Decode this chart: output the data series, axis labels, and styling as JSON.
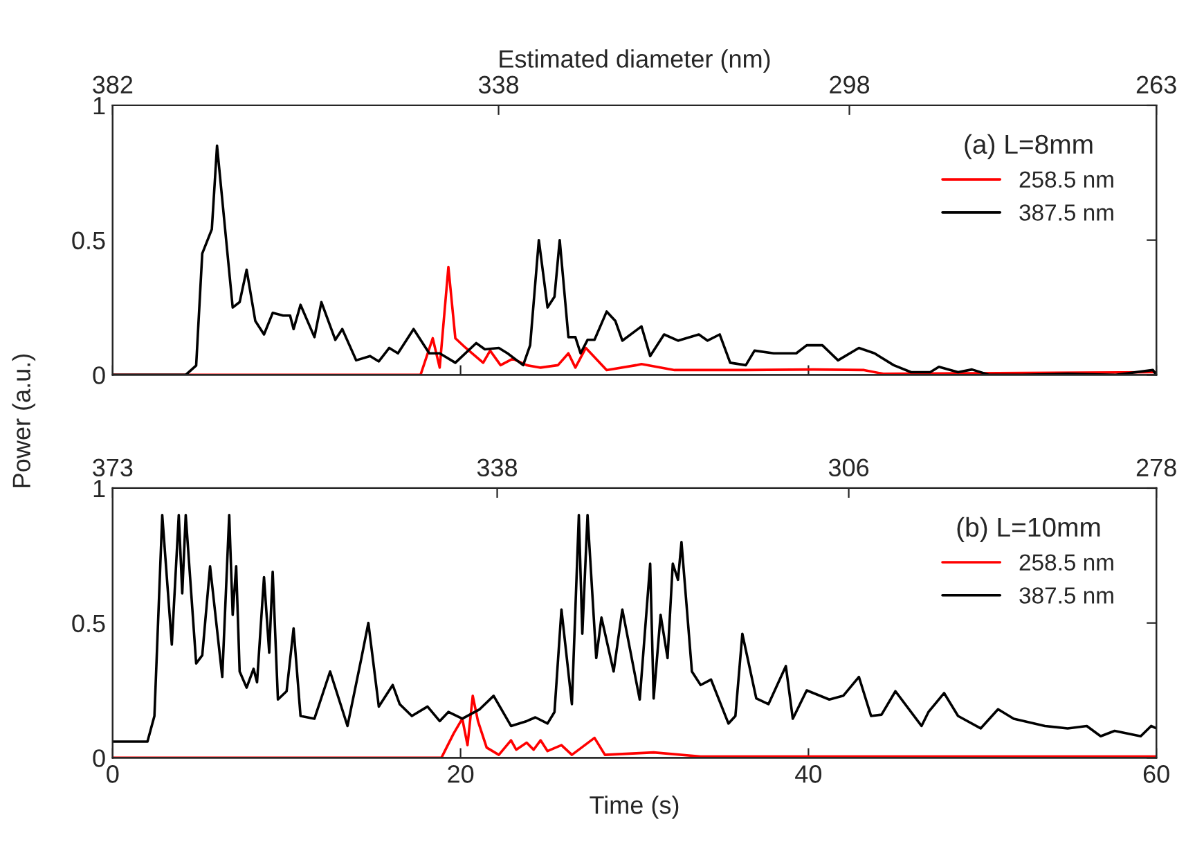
{
  "chart_data": [
    {
      "type": "line",
      "x2label": "Estimated diameter (nm)",
      "ylabel": "Power (a.u.)",
      "legend_title": "(a) L=8mm",
      "legend": "top right",
      "grid": false,
      "tick_labels": "y",
      "xlim": [
        0,
        60
      ],
      "xticks": [
        0,
        20,
        40,
        60
      ],
      "ylim": [
        0,
        1
      ],
      "yticks": [
        0,
        0.5,
        1
      ],
      "x2lim": [
        382,
        263
      ],
      "x2ticks": [
        382,
        338,
        298,
        263
      ],
      "series": [
        {
          "name": "258.5 nm",
          "color": "#ff0000",
          "x": [
            0,
            17.7,
            18.4,
            18.8,
            19.3,
            19.7,
            20.3,
            21.3,
            21.7,
            22.3,
            23.0,
            23.8,
            24.6,
            25.6,
            26.2,
            26.6,
            27.2,
            28.4,
            30.1,
            30.4,
            32.3,
            36.4,
            40.3,
            43.2,
            44.3,
            60
          ],
          "values": [
            0,
            0,
            0.136,
            0.027,
            0.4,
            0.136,
            0.1,
            0.045,
            0.09,
            0.036,
            0.06,
            0.036,
            0.027,
            0.036,
            0.08,
            0.027,
            0.1,
            0.018,
            0.036,
            0.04,
            0.018,
            0.018,
            0.02,
            0.018,
            0.004,
            0.01
          ]
        },
        {
          "name": "387.5 nm",
          "color": "#000000",
          "x": [
            0,
            4.2,
            4.8,
            5.15,
            5.7,
            6.0,
            6.9,
            7.3,
            7.7,
            8.2,
            8.7,
            9.2,
            9.8,
            10.2,
            10.4,
            10.8,
            11.6,
            12.0,
            12.8,
            13.2,
            14.0,
            14.8,
            15.3,
            15.9,
            16.4,
            17.3,
            18.2,
            18.8,
            19.7,
            20.9,
            21.4,
            22.2,
            22.7,
            23.6,
            24.0,
            24.5,
            25.0,
            25.4,
            25.7,
            26.2,
            26.6,
            26.9,
            27.3,
            27.7,
            28.4,
            28.9,
            29.3,
            30.4,
            30.9,
            31.7,
            32.5,
            33.7,
            34.2,
            34.9,
            35.5,
            36.4,
            36.9,
            38.0,
            39.3,
            39.9,
            40.8,
            41.7,
            42.9,
            43.8,
            44.9,
            45.9,
            47.0,
            47.5,
            48.6,
            49.4,
            50.4,
            52.3,
            54.9,
            57.6,
            59.8,
            60
          ],
          "values": [
            0,
            0,
            0.035,
            0.45,
            0.54,
            0.85,
            0.25,
            0.27,
            0.39,
            0.2,
            0.15,
            0.23,
            0.22,
            0.22,
            0.17,
            0.26,
            0.14,
            0.27,
            0.13,
            0.17,
            0.054,
            0.07,
            0.05,
            0.1,
            0.08,
            0.17,
            0.08,
            0.08,
            0.045,
            0.118,
            0.095,
            0.1,
            0.08,
            0.036,
            0.11,
            0.5,
            0.25,
            0.29,
            0.5,
            0.14,
            0.14,
            0.08,
            0.13,
            0.13,
            0.235,
            0.2,
            0.127,
            0.18,
            0.07,
            0.15,
            0.127,
            0.15,
            0.127,
            0.15,
            0.045,
            0.036,
            0.09,
            0.08,
            0.08,
            0.11,
            0.11,
            0.054,
            0.1,
            0.08,
            0.036,
            0.01,
            0.01,
            0.03,
            0.01,
            0.02,
            0,
            0,
            0.004,
            0,
            0.018,
            0
          ]
        }
      ]
    },
    {
      "type": "line",
      "xlabel": "Time (s)",
      "legend_title": "(b) L=10mm",
      "legend": "top right",
      "grid": false,
      "xlim": [
        0,
        60
      ],
      "xticks": [
        0,
        20,
        40,
        60
      ],
      "ylim": [
        0,
        1
      ],
      "yticks": [
        0,
        0.5,
        1
      ],
      "x2lim": [
        373,
        278
      ],
      "x2ticks": [
        373,
        338,
        306,
        278
      ],
      "series": [
        {
          "name": "258.5 nm",
          "color": "#ff0000",
          "x": [
            0,
            18.9,
            19.6,
            20.1,
            20.4,
            20.7,
            21.0,
            21.5,
            22.2,
            22.9,
            23.2,
            23.8,
            24.2,
            24.6,
            25.0,
            25.8,
            26.4,
            27.7,
            28.3,
            31.1,
            33.8,
            60
          ],
          "values": [
            0,
            0,
            0.09,
            0.145,
            0.047,
            0.23,
            0.136,
            0.038,
            0.011,
            0.065,
            0.03,
            0.056,
            0.03,
            0.065,
            0.025,
            0.047,
            0.011,
            0.074,
            0.011,
            0.02,
            0.005,
            0.005
          ]
        },
        {
          "name": "387.5 nm",
          "color": "#000000",
          "x": [
            0,
            2.0,
            2.4,
            2.85,
            3.4,
            3.8,
            4.0,
            4.2,
            4.8,
            5.15,
            5.6,
            6.3,
            6.7,
            6.9,
            7.1,
            7.3,
            7.7,
            8.1,
            8.3,
            8.7,
            9.0,
            9.2,
            9.5,
            10.0,
            10.4,
            10.8,
            11.6,
            12.5,
            13.5,
            14.3,
            14.7,
            15.3,
            16.1,
            16.5,
            17.2,
            18.1,
            18.8,
            19.3,
            20.1,
            21.1,
            21.9,
            22.9,
            23.8,
            24.3,
            25.0,
            25.4,
            25.8,
            26.4,
            26.8,
            27.0,
            27.3,
            27.8,
            28.1,
            28.8,
            29.3,
            30.3,
            30.9,
            31.1,
            31.5,
            31.9,
            32.2,
            32.5,
            32.7,
            33.3,
            33.8,
            34.4,
            35.4,
            35.8,
            36.2,
            37.0,
            37.7,
            38.7,
            39.1,
            39.9,
            41.2,
            42.0,
            42.9,
            43.6,
            44.2,
            45.0,
            46.5,
            46.9,
            47.8,
            48.6,
            49.9,
            50.9,
            51.8,
            53.6,
            54.9,
            56.0,
            56.8,
            57.6,
            59.1,
            59.7,
            60
          ],
          "values": [
            0.06,
            0.06,
            0.155,
            0.9,
            0.42,
            0.9,
            0.61,
            0.9,
            0.35,
            0.38,
            0.71,
            0.3,
            0.9,
            0.53,
            0.71,
            0.32,
            0.26,
            0.33,
            0.28,
            0.67,
            0.39,
            0.69,
            0.216,
            0.247,
            0.48,
            0.155,
            0.145,
            0.32,
            0.118,
            0.37,
            0.5,
            0.19,
            0.27,
            0.199,
            0.155,
            0.19,
            0.136,
            0.17,
            0.145,
            0.18,
            0.23,
            0.118,
            0.136,
            0.15,
            0.127,
            0.17,
            0.55,
            0.199,
            0.9,
            0.46,
            0.9,
            0.37,
            0.52,
            0.32,
            0.55,
            0.216,
            0.72,
            0.22,
            0.53,
            0.37,
            0.72,
            0.66,
            0.8,
            0.32,
            0.27,
            0.29,
            0.127,
            0.155,
            0.46,
            0.22,
            0.199,
            0.34,
            0.145,
            0.25,
            0.216,
            0.23,
            0.3,
            0.155,
            0.16,
            0.247,
            0.118,
            0.17,
            0.24,
            0.155,
            0.109,
            0.18,
            0.145,
            0.118,
            0.109,
            0.118,
            0.08,
            0.1,
            0.08,
            0.118,
            0.109
          ]
        }
      ]
    }
  ]
}
